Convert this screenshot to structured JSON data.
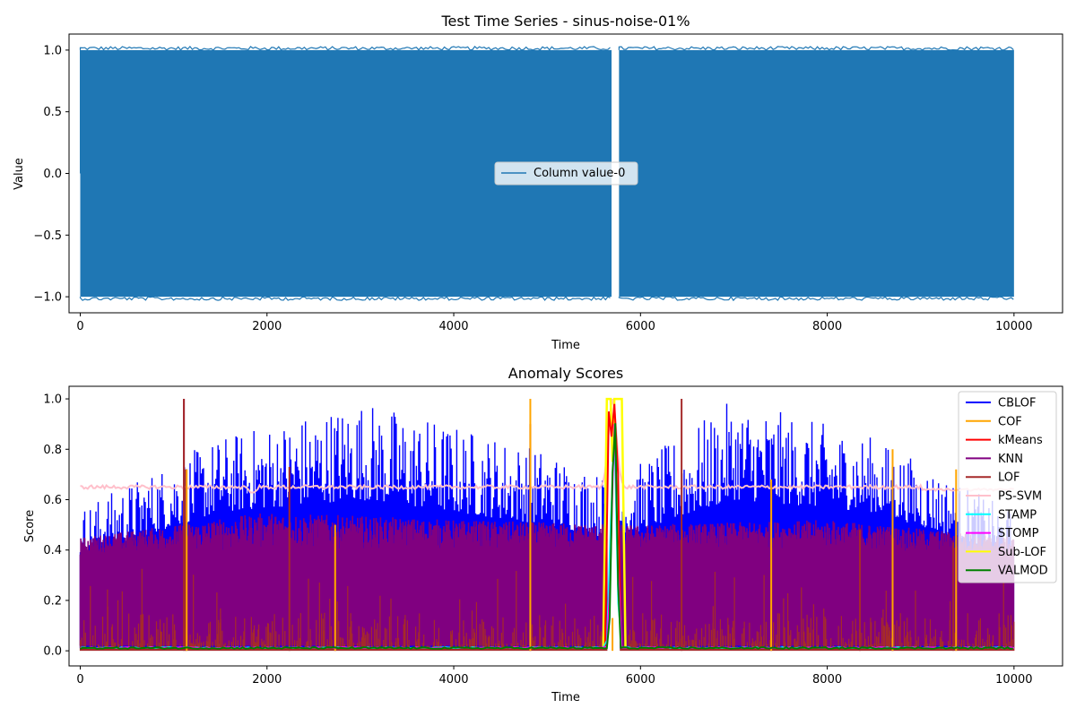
{
  "chart_data": [
    {
      "type": "line",
      "title": "Test Time Series - sinus-noise-01%",
      "xlabel": "Time",
      "ylabel": "Value",
      "xlim": [
        -120,
        10520
      ],
      "ylim": [
        -1.13,
        1.13
      ],
      "xticks": [
        0,
        2000,
        4000,
        6000,
        8000,
        10000
      ],
      "yticks": [
        -1.0,
        -0.5,
        0.0,
        0.5,
        1.0
      ],
      "ytick_labels": [
        "−1.0",
        "−0.5",
        "0.0",
        "0.5",
        "1.0"
      ],
      "legend_position": "center",
      "grid": false,
      "series": [
        {
          "name": "Column value-0",
          "color": "#1f77b4",
          "x_range": [
            0,
            10000
          ],
          "amplitude": 1.0,
          "gap": [
            5690,
            5770
          ]
        }
      ]
    },
    {
      "type": "line",
      "title": "Anomaly Scores",
      "xlabel": "Time",
      "ylabel": "Score",
      "xlim": [
        -120,
        10520
      ],
      "ylim": [
        -0.06,
        1.05
      ],
      "xticks": [
        0,
        2000,
        4000,
        6000,
        8000,
        10000
      ],
      "yticks": [
        0.0,
        0.2,
        0.4,
        0.6,
        0.8,
        1.0
      ],
      "ytick_labels": [
        "0.0",
        "0.2",
        "0.4",
        "0.6",
        "0.8",
        "1.0"
      ],
      "legend_position": "upper right",
      "grid": false,
      "series": [
        {
          "name": "CBLOF",
          "color": "#0000ff"
        },
        {
          "name": "COF",
          "color": "#ffa500"
        },
        {
          "name": "kMeans",
          "color": "#ff0000"
        },
        {
          "name": "KNN",
          "color": "#800080"
        },
        {
          "name": "LOF",
          "color": "#a52a2a"
        },
        {
          "name": "PS-SVM",
          "color": "#ffc0cb"
        },
        {
          "name": "STAMP",
          "color": "#00ffff"
        },
        {
          "name": "STOMP",
          "color": "#ff00ff"
        },
        {
          "name": "Sub-LOF",
          "color": "#ffff00"
        },
        {
          "name": "VALMOD",
          "color": "#008000"
        }
      ],
      "anomaly_window": [
        5640,
        5780
      ],
      "cblof_bands": [
        [
          0,
          0.38,
          0.57
        ],
        [
          1500,
          0.55,
          0.85
        ],
        [
          3000,
          0.6,
          1.0
        ],
        [
          5000,
          0.5,
          0.8
        ],
        [
          5600,
          0.45,
          0.7
        ],
        [
          5800,
          0.45,
          0.7
        ],
        [
          7000,
          0.6,
          1.0
        ],
        [
          8500,
          0.55,
          0.85
        ],
        [
          10000,
          0.38,
          0.55
        ]
      ],
      "knn_bands": [
        [
          0,
          0.38,
          0.45
        ],
        [
          2000,
          0.4,
          0.55
        ],
        [
          4000,
          0.4,
          0.52
        ],
        [
          6000,
          0.4,
          0.5
        ],
        [
          8000,
          0.4,
          0.52
        ],
        [
          10000,
          0.38,
          0.45
        ]
      ],
      "lof_spikes": [
        [
          1110,
          1.0
        ],
        [
          1130,
          0.72
        ],
        [
          2240,
          0.73
        ],
        [
          2730,
          0.5
        ],
        [
          4820,
          0.9
        ],
        [
          6440,
          1.0
        ],
        [
          7400,
          0.67
        ],
        [
          8350,
          0.48
        ],
        [
          8700,
          0.41
        ],
        [
          9350,
          0.43
        ]
      ],
      "cof_spikes": [
        [
          1140,
          0.72
        ],
        [
          2730,
          0.5
        ],
        [
          4820,
          1.0
        ],
        [
          7400,
          0.68
        ],
        [
          8700,
          0.8
        ],
        [
          9380,
          0.72
        ]
      ],
      "pssvm_level": 0.65
    }
  ]
}
